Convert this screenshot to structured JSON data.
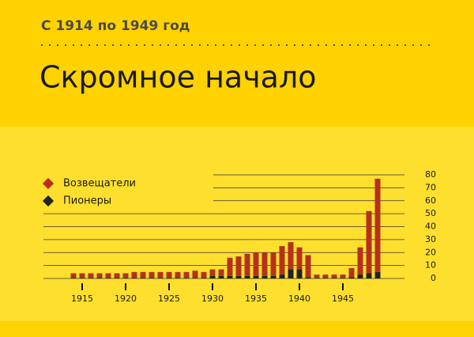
{
  "chart_data": {
    "type": "stacked_bar",
    "subtitle": "С 1914 по 1949 год",
    "title": "Скромное начало",
    "categories": [
      null,
      1915,
      null,
      null,
      null,
      null,
      1920,
      null,
      null,
      null,
      null,
      1925,
      null,
      null,
      null,
      null,
      1930,
      null,
      null,
      null,
      null,
      1935,
      null,
      null,
      null,
      null,
      1940,
      null,
      null,
      null,
      null,
      1945,
      null,
      null,
      null,
      null
    ],
    "series": [
      {
        "name": "Пионеры",
        "color": "#222222",
        "values": [
          0.5,
          0.5,
          0.5,
          0.5,
          0.5,
          0.5,
          0.5,
          0.5,
          0.5,
          0.5,
          0.5,
          0.5,
          0.5,
          0.5,
          0.5,
          0.5,
          2,
          2,
          2,
          2,
          2,
          2,
          2,
          2,
          3,
          7,
          7,
          1,
          0.5,
          0.5,
          0.5,
          0.5,
          1,
          3,
          4,
          5
        ]
      },
      {
        "name": "Возвещатели",
        "color": "#b5311c",
        "values": [
          3.5,
          3.5,
          3.5,
          3.5,
          3.5,
          3.5,
          3.5,
          4.5,
          4.5,
          4.5,
          4.5,
          4.5,
          4.5,
          4.5,
          5.5,
          4.5,
          5,
          5,
          14,
          15,
          17,
          18,
          18,
          18,
          22,
          21,
          17,
          17,
          2.5,
          2.5,
          2.5,
          2.5,
          7,
          21,
          48,
          72
        ]
      }
    ],
    "ylim": [
      0,
      80
    ],
    "yticks": [
      0,
      10,
      20,
      30,
      40,
      50,
      60,
      70,
      80
    ],
    "grid": true
  }
}
